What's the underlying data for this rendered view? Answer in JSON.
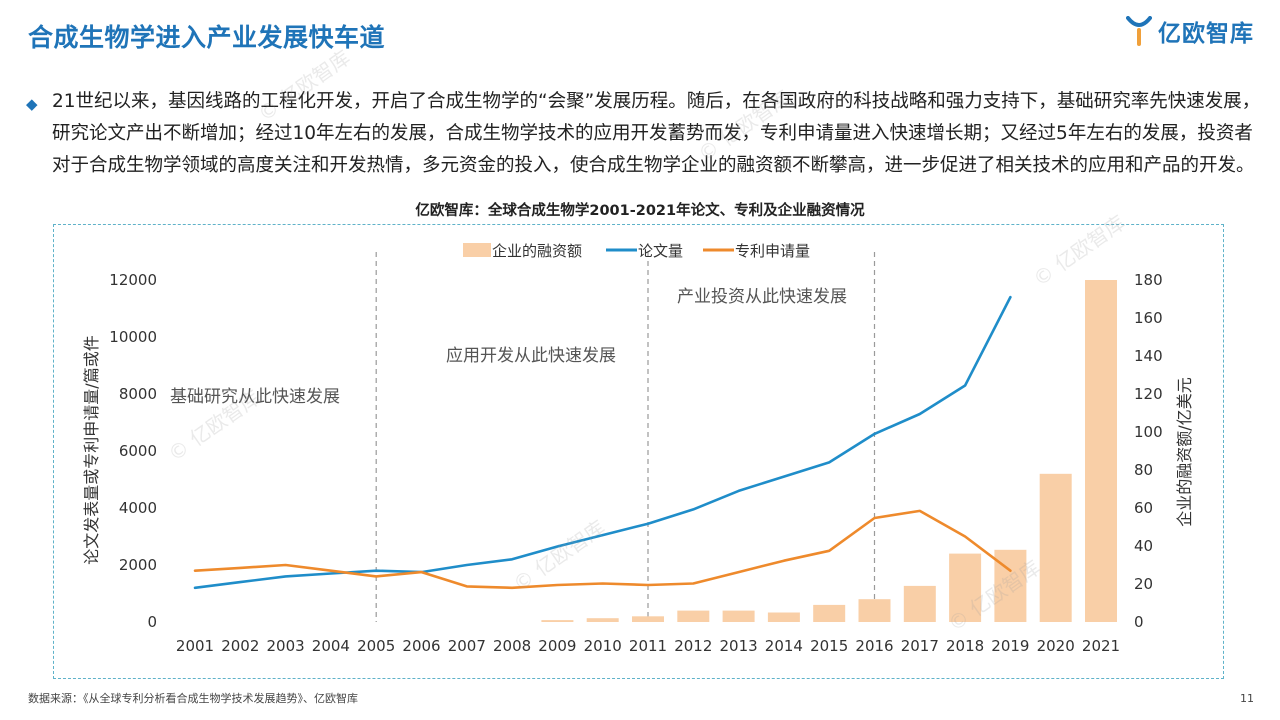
{
  "page": {
    "title": "合成生物学进入产业发展快车道",
    "logo_text": "亿欧智库",
    "bullet_text": "21世纪以来，基因线路的工程化开发，开启了合成生物学的“会聚”发展历程。随后，在各国政府的科技战略和强力支持下，基础研究率先快速发展，研究论文产出不断增加；经过10年左右的发展，合成生物学技术的应用开发蓄势而发，专利申请量进入快速增长期；又经过5年左右的发展，投资者对于合成生物学领域的高度关注和开发热情，多元资金的投入，使合成生物学企业的融资额不断攀高，进一步促进了相关技术的应用和产品的开发。",
    "footer_source": "数据来源：《从全球专利分析看合成生物学技术发展趋势》、亿欧智库",
    "page_number": "11",
    "watermark": "© 亿欧智库"
  },
  "colors": {
    "title": "#1f74b8",
    "bar": "#f9cfa7",
    "papers_line": "#1f8dc9",
    "patents_line": "#ee8a2c",
    "frame": "#5fb2c9"
  },
  "chart_data": {
    "type": "bar+line",
    "title": "亿欧智库：全球合成生物学2001-2021年论文、专利及企业融资情况",
    "categories": [
      "2001",
      "2002",
      "2003",
      "2004",
      "2005",
      "2006",
      "2007",
      "2008",
      "2009",
      "2010",
      "2011",
      "2012",
      "2013",
      "2014",
      "2015",
      "2016",
      "2017",
      "2018",
      "2019",
      "2020",
      "2021"
    ],
    "series": [
      {
        "name": "企业的融资额",
        "type": "bar",
        "axis": "right",
        "values": [
          0,
          0,
          0,
          0,
          0,
          0,
          0,
          0,
          1,
          2,
          3,
          6,
          6,
          5,
          9,
          12,
          19,
          36,
          38,
          78,
          180
        ]
      },
      {
        "name": "论文量",
        "type": "line",
        "axis": "left",
        "values": [
          1200,
          1400,
          1600,
          1700,
          1800,
          1750,
          2000,
          2200,
          2650,
          3050,
          3450,
          3950,
          4600,
          5100,
          5600,
          6600,
          7300,
          8300,
          11400,
          null,
          null
        ]
      },
      {
        "name": "专利申请量",
        "type": "line",
        "axis": "left",
        "values": [
          1800,
          1900,
          2000,
          1800,
          1600,
          1750,
          1250,
          1200,
          1300,
          1350,
          1300,
          1350,
          1750,
          2150,
          2500,
          3650,
          3900,
          3000,
          1800,
          null,
          null
        ]
      }
    ],
    "ylabel_left": "论文发表量或专利申请量/篇或件",
    "ylabel_right": "企业的融资额/亿美元",
    "ylim_left": [
      0,
      12000
    ],
    "ylim_right": [
      0,
      180
    ],
    "yticks_left": [
      "0",
      "2000",
      "4000",
      "6000",
      "8000",
      "10000",
      "12000"
    ],
    "yticks_right": [
      "0",
      "20",
      "40",
      "60",
      "80",
      "100",
      "120",
      "140",
      "160",
      "180"
    ],
    "phase_years": [
      "2005",
      "2011",
      "2016"
    ],
    "annotations": [
      "基础研究从此快速发展",
      "应用开发从此快速发展",
      "产业投资从此快速发展"
    ],
    "legend_position": "top-center",
    "grid": false
  }
}
